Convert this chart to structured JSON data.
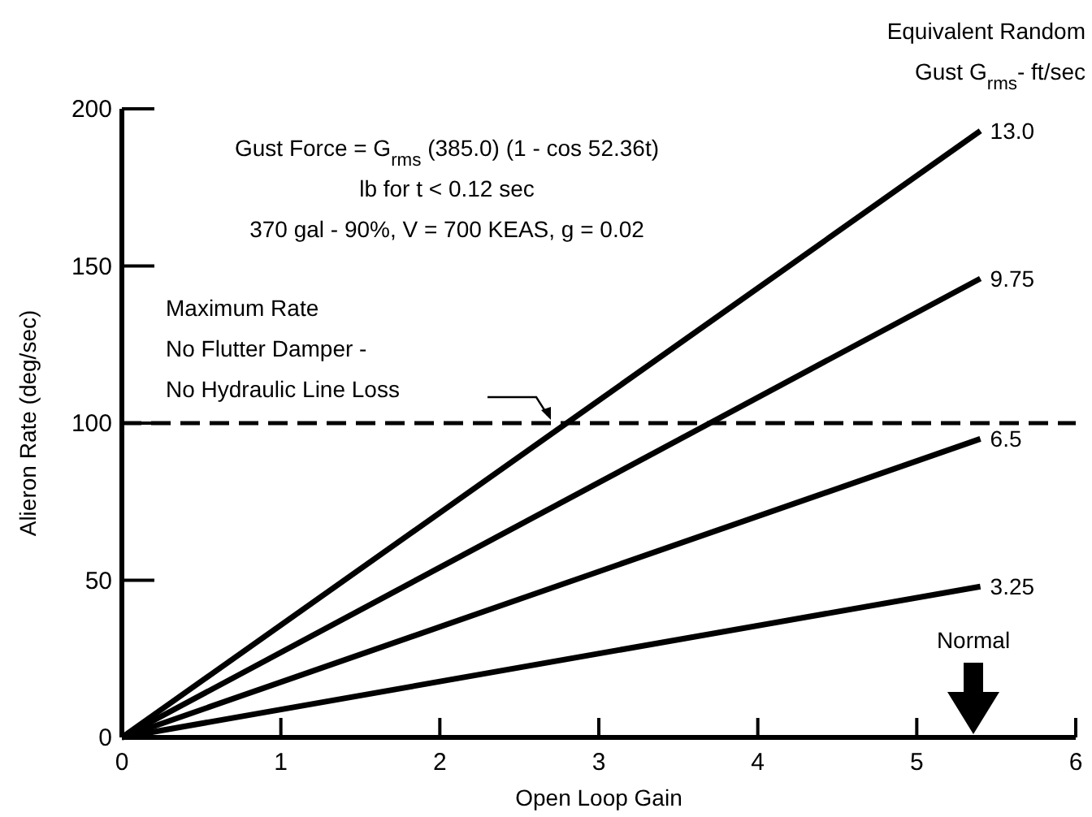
{
  "chart_data": {
    "type": "line",
    "xlabel": "Open Loop Gain",
    "ylabel": "Alieron Rate (deg/sec)",
    "legend_title": "Equivalent Random\nGust G$_{rms}$- ft/sec",
    "xlim": [
      0,
      6
    ],
    "ylim": [
      0,
      200
    ],
    "xticks": [
      0,
      1,
      2,
      3,
      4,
      5,
      6
    ],
    "yticks": [
      0,
      50,
      100,
      150,
      200
    ],
    "x": [
      0,
      5.4
    ],
    "grid": false,
    "marker": "none",
    "line_style": "solid",
    "series": [
      {
        "name": "13.0",
        "color": "#000000",
        "values": [
          0,
          193
        ]
      },
      {
        "name": "9.75",
        "color": "#000000",
        "values": [
          0,
          146
        ]
      },
      {
        "name": "6.5",
        "color": "#000000",
        "values": [
          0,
          95
        ]
      },
      {
        "name": "3.25",
        "color": "#000000",
        "values": [
          0,
          48
        ]
      }
    ],
    "ref_lines": [
      {
        "axis": "y",
        "value": 100,
        "label": "Maximum Rate\nNo Flutter Damper -\nNo Hydraulic Line Loss",
        "color": "#000000",
        "line_style": "dashed"
      }
    ],
    "annotations": [
      "Gust Force = G$_{rms}$ (385.0) (1 - cos 52.36t)\nlb for t < 0.12 sec\n370 gal - 90%, V = 700 KEAS, g = 0.02",
      "Normal"
    ]
  }
}
